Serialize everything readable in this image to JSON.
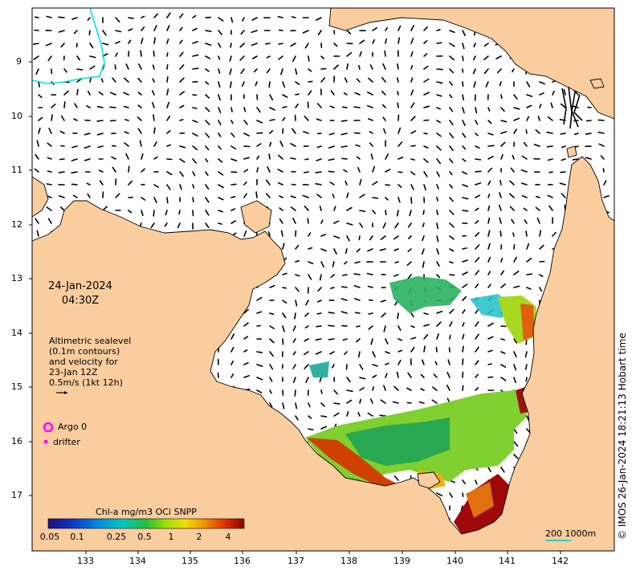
{
  "map": {
    "date": "24-Jan-2024",
    "time": "04:30Z",
    "info_lines": [
      "Altimetric sealevel",
      "(0.1m contours)",
      "and velocity for",
      "23-Jan 12Z",
      "0.5m/s (1kt 12h)"
    ],
    "legend": {
      "argo_label": "Argo 0",
      "drifter_label": "drifter"
    },
    "colorbar": {
      "title": "Chl-a mg/m3 OCi SNPP",
      "ticks": [
        "0.05",
        "0.1",
        "0.25",
        "0.5",
        "1",
        "2",
        "4"
      ]
    },
    "lat_labels": [
      "9",
      "10",
      "11",
      "12",
      "13",
      "14",
      "15",
      "16",
      "17"
    ],
    "lon_labels": [
      "133",
      "134",
      "135",
      "136",
      "137",
      "138",
      "139",
      "140",
      "141",
      "142"
    ],
    "scale_label": "200  1000m",
    "credit": "© IMOS 26-Jan-2024 18:21:13 Hobart time",
    "colors": {
      "land": "#FACD9F",
      "ocean": "#FFFFFF",
      "argo": "#FF00FF",
      "contour": "#00E5E5"
    }
  }
}
